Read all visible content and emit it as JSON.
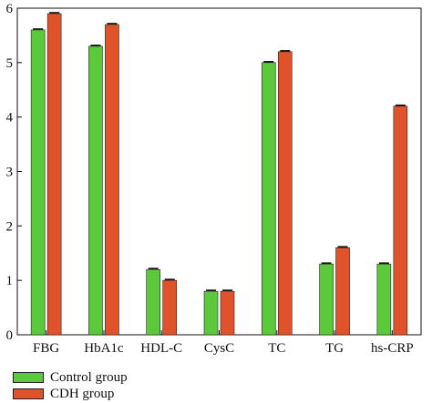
{
  "chart_data": {
    "type": "bar",
    "categories": [
      "FBG",
      "HbA1c",
      "HDL-C",
      "CysC",
      "TC",
      "TG",
      "hs-CRP"
    ],
    "series": [
      {
        "name": "Control group",
        "color": "#5cc93a",
        "values": [
          5.6,
          5.3,
          1.2,
          0.8,
          5.0,
          1.3,
          1.3
        ]
      },
      {
        "name": "CDH group",
        "color": "#e0532a",
        "values": [
          5.9,
          5.7,
          1.0,
          0.8,
          5.2,
          1.6,
          4.2
        ]
      }
    ],
    "yticks": [
      0,
      1,
      2,
      3,
      4,
      5,
      6
    ],
    "ylim": [
      0,
      6
    ],
    "error_bars": true,
    "legend_position": "bottom-left",
    "grid": false
  }
}
